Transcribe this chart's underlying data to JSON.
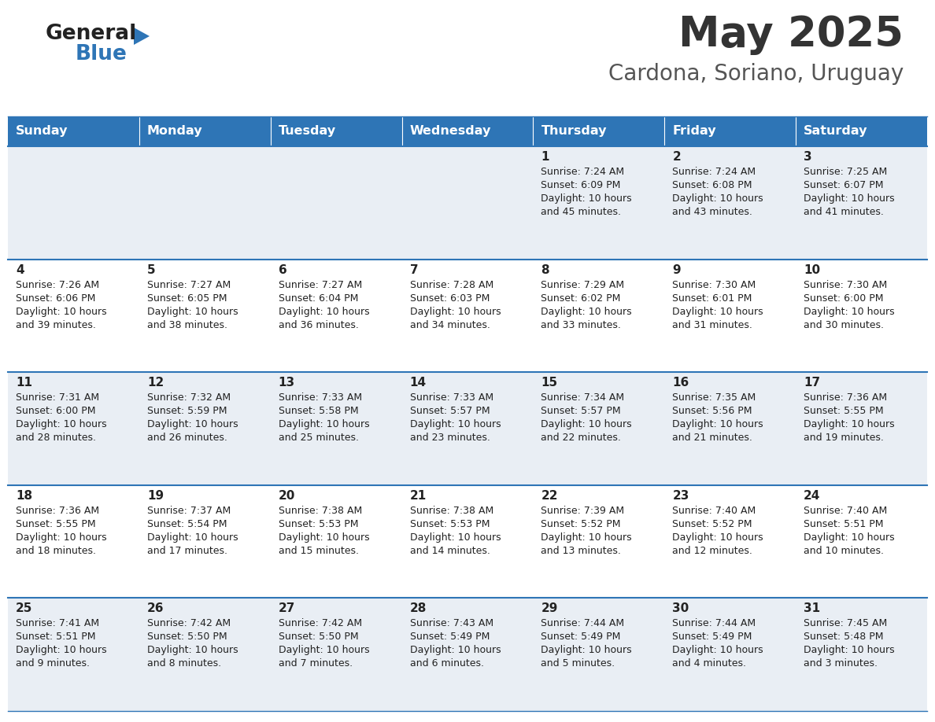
{
  "title": "May 2025",
  "subtitle": "Cardona, Soriano, Uruguay",
  "header_bg": "#2E75B6",
  "header_text": "#FFFFFF",
  "row_bg_light": "#E9EEF4",
  "row_bg_white": "#FFFFFF",
  "border_color": "#2E75B6",
  "text_color": "#222222",
  "daylight_color": "#222222",
  "days_of_week": [
    "Sunday",
    "Monday",
    "Tuesday",
    "Wednesday",
    "Thursday",
    "Friday",
    "Saturday"
  ],
  "calendar": [
    [
      {
        "day": "",
        "sunrise": "",
        "sunset": "",
        "daylight": ""
      },
      {
        "day": "",
        "sunrise": "",
        "sunset": "",
        "daylight": ""
      },
      {
        "day": "",
        "sunrise": "",
        "sunset": "",
        "daylight": ""
      },
      {
        "day": "",
        "sunrise": "",
        "sunset": "",
        "daylight": ""
      },
      {
        "day": "1",
        "sunrise": "7:24 AM",
        "sunset": "6:09 PM",
        "daylight": "10 hours\nand 45 minutes."
      },
      {
        "day": "2",
        "sunrise": "7:24 AM",
        "sunset": "6:08 PM",
        "daylight": "10 hours\nand 43 minutes."
      },
      {
        "day": "3",
        "sunrise": "7:25 AM",
        "sunset": "6:07 PM",
        "daylight": "10 hours\nand 41 minutes."
      }
    ],
    [
      {
        "day": "4",
        "sunrise": "7:26 AM",
        "sunset": "6:06 PM",
        "daylight": "10 hours\nand 39 minutes."
      },
      {
        "day": "5",
        "sunrise": "7:27 AM",
        "sunset": "6:05 PM",
        "daylight": "10 hours\nand 38 minutes."
      },
      {
        "day": "6",
        "sunrise": "7:27 AM",
        "sunset": "6:04 PM",
        "daylight": "10 hours\nand 36 minutes."
      },
      {
        "day": "7",
        "sunrise": "7:28 AM",
        "sunset": "6:03 PM",
        "daylight": "10 hours\nand 34 minutes."
      },
      {
        "day": "8",
        "sunrise": "7:29 AM",
        "sunset": "6:02 PM",
        "daylight": "10 hours\nand 33 minutes."
      },
      {
        "day": "9",
        "sunrise": "7:30 AM",
        "sunset": "6:01 PM",
        "daylight": "10 hours\nand 31 minutes."
      },
      {
        "day": "10",
        "sunrise": "7:30 AM",
        "sunset": "6:00 PM",
        "daylight": "10 hours\nand 30 minutes."
      }
    ],
    [
      {
        "day": "11",
        "sunrise": "7:31 AM",
        "sunset": "6:00 PM",
        "daylight": "10 hours\nand 28 minutes."
      },
      {
        "day": "12",
        "sunrise": "7:32 AM",
        "sunset": "5:59 PM",
        "daylight": "10 hours\nand 26 minutes."
      },
      {
        "day": "13",
        "sunrise": "7:33 AM",
        "sunset": "5:58 PM",
        "daylight": "10 hours\nand 25 minutes."
      },
      {
        "day": "14",
        "sunrise": "7:33 AM",
        "sunset": "5:57 PM",
        "daylight": "10 hours\nand 23 minutes."
      },
      {
        "day": "15",
        "sunrise": "7:34 AM",
        "sunset": "5:57 PM",
        "daylight": "10 hours\nand 22 minutes."
      },
      {
        "day": "16",
        "sunrise": "7:35 AM",
        "sunset": "5:56 PM",
        "daylight": "10 hours\nand 21 minutes."
      },
      {
        "day": "17",
        "sunrise": "7:36 AM",
        "sunset": "5:55 PM",
        "daylight": "10 hours\nand 19 minutes."
      }
    ],
    [
      {
        "day": "18",
        "sunrise": "7:36 AM",
        "sunset": "5:55 PM",
        "daylight": "10 hours\nand 18 minutes."
      },
      {
        "day": "19",
        "sunrise": "7:37 AM",
        "sunset": "5:54 PM",
        "daylight": "10 hours\nand 17 minutes."
      },
      {
        "day": "20",
        "sunrise": "7:38 AM",
        "sunset": "5:53 PM",
        "daylight": "10 hours\nand 15 minutes."
      },
      {
        "day": "21",
        "sunrise": "7:38 AM",
        "sunset": "5:53 PM",
        "daylight": "10 hours\nand 14 minutes."
      },
      {
        "day": "22",
        "sunrise": "7:39 AM",
        "sunset": "5:52 PM",
        "daylight": "10 hours\nand 13 minutes."
      },
      {
        "day": "23",
        "sunrise": "7:40 AM",
        "sunset": "5:52 PM",
        "daylight": "10 hours\nand 12 minutes."
      },
      {
        "day": "24",
        "sunrise": "7:40 AM",
        "sunset": "5:51 PM",
        "daylight": "10 hours\nand 10 minutes."
      }
    ],
    [
      {
        "day": "25",
        "sunrise": "7:41 AM",
        "sunset": "5:51 PM",
        "daylight": "10 hours\nand 9 minutes."
      },
      {
        "day": "26",
        "sunrise": "7:42 AM",
        "sunset": "5:50 PM",
        "daylight": "10 hours\nand 8 minutes."
      },
      {
        "day": "27",
        "sunrise": "7:42 AM",
        "sunset": "5:50 PM",
        "daylight": "10 hours\nand 7 minutes."
      },
      {
        "day": "28",
        "sunrise": "7:43 AM",
        "sunset": "5:49 PM",
        "daylight": "10 hours\nand 6 minutes."
      },
      {
        "day": "29",
        "sunrise": "7:44 AM",
        "sunset": "5:49 PM",
        "daylight": "10 hours\nand 5 minutes."
      },
      {
        "day": "30",
        "sunrise": "7:44 AM",
        "sunset": "5:49 PM",
        "daylight": "10 hours\nand 4 minutes."
      },
      {
        "day": "31",
        "sunrise": "7:45 AM",
        "sunset": "5:48 PM",
        "daylight": "10 hours\nand 3 minutes."
      }
    ]
  ],
  "logo_general_color": "#222222",
  "logo_blue_color": "#2E75B6",
  "logo_triangle_color": "#2E75B6",
  "title_color": "#333333",
  "subtitle_color": "#555555",
  "fig_width": 11.88,
  "fig_height": 9.18,
  "dpi": 100
}
